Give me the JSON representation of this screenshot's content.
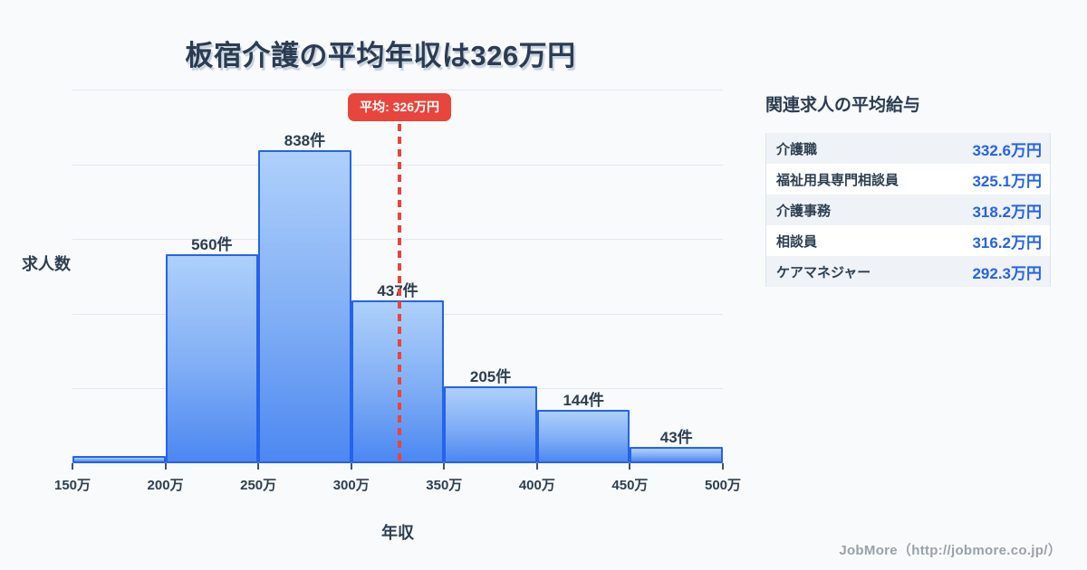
{
  "title": "板宿介護の平均年収は326万円",
  "chart_data": {
    "type": "bar",
    "title": "板宿介護の平均年収は326万円",
    "xlabel": "年収",
    "ylabel": "求人数",
    "x_tick_labels": [
      "150万",
      "200万",
      "250万",
      "300万",
      "350万",
      "400万",
      "450万",
      "500万"
    ],
    "bin_edges": [
      150,
      200,
      250,
      300,
      350,
      400,
      450,
      500
    ],
    "values": [
      20,
      560,
      838,
      437,
      205,
      144,
      43
    ],
    "bar_labels": [
      "",
      "560件",
      "838件",
      "437件",
      "205件",
      "144件",
      "43件"
    ],
    "ylim": [
      0,
      1000
    ],
    "grid_step": 200,
    "grid": true,
    "legend": false,
    "average": {
      "value": 326,
      "label": "平均: 326万円"
    },
    "colors": {
      "bar_border": "#2563eb",
      "bar_fill_top": "#aed0fa",
      "bar_fill_bottom": "#4c88f1",
      "average_line": "#e8453c",
      "gridline": "#e4e8ef",
      "text": "#2c3e50"
    }
  },
  "panel": {
    "title": "関連求人の平均給与",
    "rows": [
      {
        "label": "介護職",
        "value": "332.6万円"
      },
      {
        "label": "福祉用具専門相談員",
        "value": "325.1万円"
      },
      {
        "label": "介護事務",
        "value": "318.2万円"
      },
      {
        "label": "相談員",
        "value": "316.2万円"
      },
      {
        "label": "ケアマネジャー",
        "value": "292.3万円"
      }
    ]
  },
  "footer": {
    "text": "JobMore（http://jobmore.co.jp/）"
  }
}
